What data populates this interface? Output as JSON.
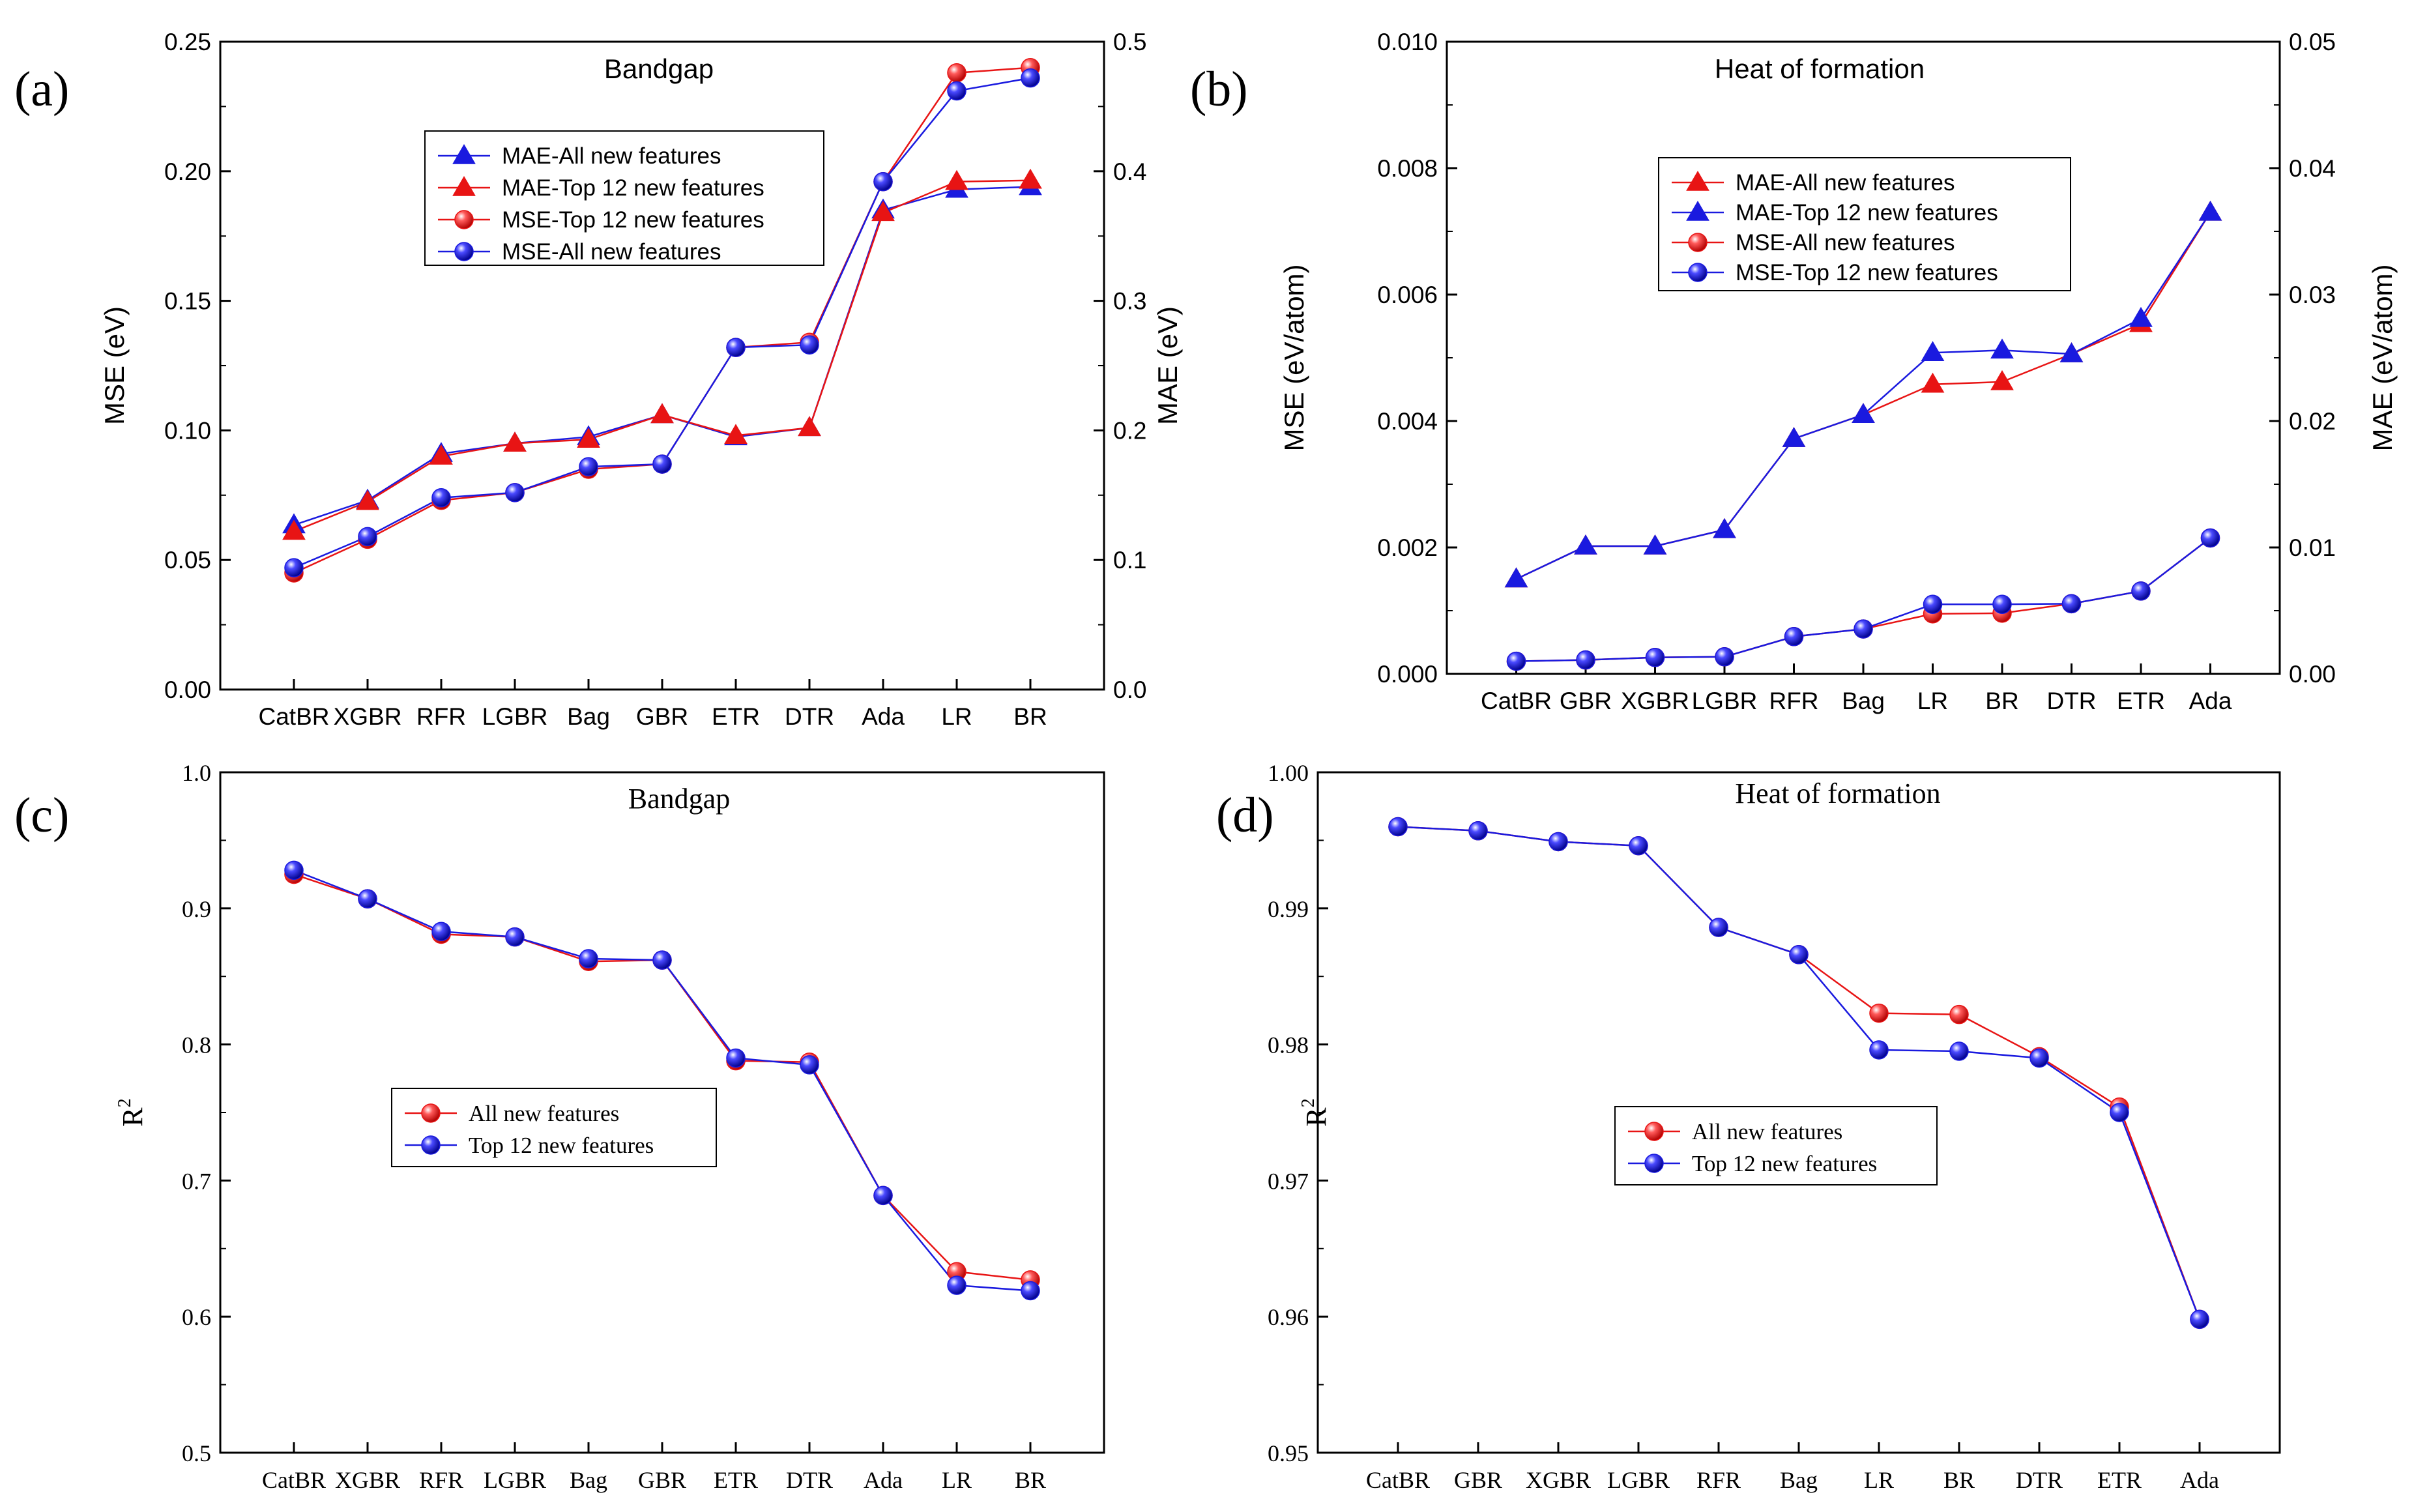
{
  "panels": [
    {
      "id": "a",
      "label": "(a)",
      "font": "sans",
      "title": "Bandgap",
      "left_axis_label": "MSE (eV)",
      "right_axis_label": "MAE (eV)",
      "left_sup": "",
      "categories": [
        "CatBR",
        "XGBR",
        "RFR",
        "LGBR",
        "Bag",
        "GBR",
        "ETR",
        "DTR",
        "Ada",
        "LR",
        "BR"
      ],
      "left_ticks": [
        "0.00",
        "0.05",
        "0.10",
        "0.15",
        "0.20",
        "0.25"
      ],
      "right_ticks": [
        "0.0",
        "0.1",
        "0.2",
        "0.3",
        "0.4",
        "0.5"
      ],
      "legend": [
        {
          "label": "MAE-All new features",
          "marker": "triangle",
          "color": "#1a1adf"
        },
        {
          "label": "MAE-Top 12 new features",
          "marker": "triangle",
          "color": "#e81414"
        },
        {
          "label": "MSE-Top 12 new features",
          "marker": "circle",
          "color": "#e81414"
        },
        {
          "label": "MSE-All new features",
          "marker": "circle",
          "color": "#1a1adf"
        }
      ]
    },
    {
      "id": "b",
      "label": "(b)",
      "font": "sans",
      "title": "Heat of formation",
      "left_axis_label": "MSE  (eV/atom)",
      "right_axis_label": "MAE  (eV/atom)",
      "left_sup": "",
      "categories": [
        "CatBR",
        "GBR",
        "XGBR",
        "LGBR",
        "RFR",
        "Bag",
        "LR",
        "BR",
        "DTR",
        "ETR",
        "Ada"
      ],
      "left_ticks": [
        "0.000",
        "0.002",
        "0.004",
        "0.006",
        "0.008",
        "0.010"
      ],
      "right_ticks": [
        "0.00",
        "0.01",
        "0.02",
        "0.03",
        "0.04",
        "0.05"
      ],
      "legend": [
        {
          "label": "MAE-All new features",
          "marker": "triangle",
          "color": "#e81414"
        },
        {
          "label": "MAE-Top 12 new features",
          "marker": "triangle",
          "color": "#1a1adf"
        },
        {
          "label": "MSE-All new features",
          "marker": "circle",
          "color": "#e81414"
        },
        {
          "label": "MSE-Top 12 new features",
          "marker": "circle",
          "color": "#1a1adf"
        }
      ]
    },
    {
      "id": "c",
      "label": "(c)",
      "font": "serif",
      "title": "Bandgap",
      "left_axis_label": "R",
      "left_sup": "2",
      "right_axis_label": "",
      "categories": [
        "CatBR",
        "XGBR",
        "RFR",
        "LGBR",
        "Bag",
        "GBR",
        "ETR",
        "DTR",
        "Ada",
        "LR",
        "BR"
      ],
      "left_ticks": [
        "0.5",
        "0.6",
        "0.7",
        "0.8",
        "0.9",
        "1.0"
      ],
      "right_ticks": [],
      "legend": [
        {
          "label": "All new features",
          "marker": "circle",
          "color": "#e81414"
        },
        {
          "label": "Top 12 new features",
          "marker": "circle",
          "color": "#1a1adf"
        }
      ]
    },
    {
      "id": "d",
      "label": "(d)",
      "font": "serif",
      "title": "Heat of formation",
      "left_axis_label": "R",
      "left_sup": "2",
      "right_axis_label": "",
      "categories": [
        "CatBR",
        "GBR",
        "XGBR",
        "LGBR",
        "RFR",
        "Bag",
        "LR",
        "BR",
        "DTR",
        "ETR",
        "Ada"
      ],
      "left_ticks": [
        "0.95",
        "0.96",
        "0.97",
        "0.98",
        "0.99",
        "1.00"
      ],
      "right_ticks": [],
      "legend": [
        {
          "label": "All new features",
          "marker": "circle",
          "color": "#e81414"
        },
        {
          "label": "Top 12 new features",
          "marker": "circle",
          "color": "#1a1adf"
        }
      ]
    }
  ],
  "chart_data": [
    {
      "type": "line",
      "panel": "a",
      "title": "Bandgap",
      "categories": [
        "CatBR",
        "XGBR",
        "RFR",
        "LGBR",
        "Bag",
        "GBR",
        "ETR",
        "DTR",
        "Ada",
        "LR",
        "BR"
      ],
      "ylabel": "MSE (eV)",
      "ylim": [
        0,
        0.25
      ],
      "y2label": "MAE (eV)",
      "y2lim": [
        0,
        0.5
      ],
      "legend_position": "upper-center",
      "series": [
        {
          "name": "MAE-All new features",
          "axis": "right",
          "marker": "triangle",
          "color": "#1a1adf",
          "values": [
            0.127,
            0.146,
            0.182,
            0.19,
            0.195,
            0.212,
            0.195,
            0.202,
            0.37,
            0.386,
            0.388
          ]
        },
        {
          "name": "MAE-Top 12 new features",
          "axis": "right",
          "marker": "triangle",
          "color": "#e81414",
          "values": [
            0.122,
            0.145,
            0.18,
            0.19,
            0.193,
            0.212,
            0.196,
            0.202,
            0.368,
            0.392,
            0.393
          ]
        },
        {
          "name": "MSE-Top 12 new features",
          "axis": "left",
          "marker": "circle",
          "color": "#e81414",
          "values": [
            0.045,
            0.058,
            0.073,
            0.076,
            0.085,
            0.087,
            0.132,
            0.134,
            0.196,
            0.238,
            0.24
          ]
        },
        {
          "name": "MSE-All new features",
          "axis": "left",
          "marker": "circle",
          "color": "#1a1adf",
          "values": [
            0.047,
            0.059,
            0.074,
            0.076,
            0.086,
            0.087,
            0.132,
            0.133,
            0.196,
            0.231,
            0.236
          ]
        }
      ]
    },
    {
      "type": "line",
      "panel": "b",
      "title": "Heat of formation",
      "categories": [
        "CatBR",
        "GBR",
        "XGBR",
        "LGBR",
        "RFR",
        "Bag",
        "LR",
        "BR",
        "DTR",
        "ETR",
        "Ada"
      ],
      "ylabel": "MSE  (eV/atom)",
      "ylim": [
        0,
        0.01
      ],
      "y2label": "MAE  (eV/atom)",
      "y2lim": [
        0,
        0.05
      ],
      "legend_position": "upper-center",
      "series": [
        {
          "name": "MAE-All new features",
          "axis": "right",
          "marker": "triangle",
          "color": "#e81414",
          "values": [
            0.0075,
            0.0101,
            0.0101,
            0.0114,
            0.0186,
            0.0205,
            0.0229,
            0.0231,
            0.0253,
            0.0277,
            0.0365
          ]
        },
        {
          "name": "MAE-Top 12 new features",
          "axis": "right",
          "marker": "triangle",
          "color": "#1a1adf",
          "values": [
            0.0075,
            0.0101,
            0.0101,
            0.0114,
            0.0186,
            0.0205,
            0.0254,
            0.0256,
            0.0253,
            0.0281,
            0.0365
          ]
        },
        {
          "name": "MSE-All new features",
          "axis": "left",
          "marker": "circle",
          "color": "#e81414",
          "values": [
            0.0002,
            0.00022,
            0.00026,
            0.00027,
            0.00059,
            0.00071,
            0.00095,
            0.00096,
            0.00111,
            0.00131,
            0.00215
          ]
        },
        {
          "name": "MSE-Top 12 new features",
          "axis": "left",
          "marker": "circle",
          "color": "#1a1adf",
          "values": [
            0.0002,
            0.00022,
            0.00026,
            0.00027,
            0.00059,
            0.00071,
            0.0011,
            0.0011,
            0.00111,
            0.00131,
            0.00215
          ]
        }
      ]
    },
    {
      "type": "line",
      "panel": "c",
      "title": "Bandgap",
      "categories": [
        "CatBR",
        "XGBR",
        "RFR",
        "LGBR",
        "Bag",
        "GBR",
        "ETR",
        "DTR",
        "Ada",
        "LR",
        "BR"
      ],
      "ylabel": "R2",
      "ylim": [
        0.5,
        1.0
      ],
      "legend_position": "center",
      "series": [
        {
          "name": "All new features",
          "marker": "circle",
          "color": "#e81414",
          "values": [
            0.925,
            0.907,
            0.881,
            0.879,
            0.861,
            0.862,
            0.788,
            0.787,
            0.689,
            0.633,
            0.627
          ]
        },
        {
          "name": "Top 12 new features",
          "marker": "circle",
          "color": "#1a1adf",
          "values": [
            0.928,
            0.907,
            0.883,
            0.879,
            0.863,
            0.862,
            0.79,
            0.785,
            0.689,
            0.623,
            0.619
          ]
        }
      ]
    },
    {
      "type": "line",
      "panel": "d",
      "title": "Heat of formation",
      "categories": [
        "CatBR",
        "GBR",
        "XGBR",
        "LGBR",
        "RFR",
        "Bag",
        "LR",
        "BR",
        "DTR",
        "ETR",
        "Ada"
      ],
      "ylabel": "R2",
      "ylim": [
        0.95,
        1.0
      ],
      "legend_position": "center-left",
      "series": [
        {
          "name": "All new features",
          "marker": "circle",
          "color": "#e81414",
          "values": [
            0.996,
            0.9957,
            0.9949,
            0.9946,
            0.9886,
            0.9866,
            0.9823,
            0.9822,
            0.9791,
            0.9754,
            0.9598
          ]
        },
        {
          "name": "Top 12 new features",
          "marker": "circle",
          "color": "#1a1adf",
          "values": [
            0.996,
            0.9957,
            0.9949,
            0.9946,
            0.9886,
            0.9866,
            0.9796,
            0.9795,
            0.979,
            0.975,
            0.9598
          ]
        }
      ]
    }
  ]
}
